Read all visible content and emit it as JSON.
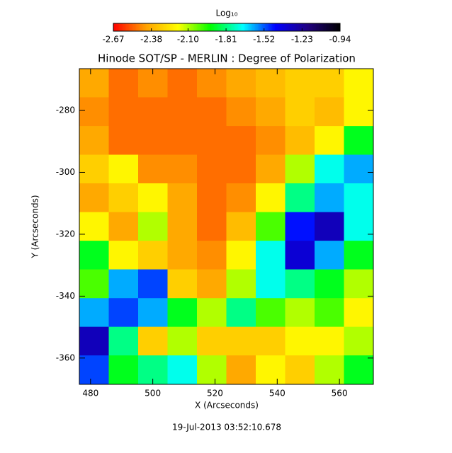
{
  "chart_data": {
    "type": "heatmap",
    "title": "Hinode SOT/SP - MERLIN : Degree of Polarization",
    "xlabel": "X (Arcseconds)",
    "ylabel": "Y (Arcseconds)",
    "footer": "19-Jul-2013 03:52:10.678",
    "colorbar_label": "Log₁₀",
    "zlim": [
      -2.67,
      -0.94
    ],
    "cticks": [
      -2.67,
      -2.38,
      {
        "value": -2.1,
        "label": "-2.10"
      },
      -1.81,
      -1.52,
      -1.23,
      -0.94
    ],
    "colormap": [
      "#ff0000",
      "#ffa000",
      "#ffff00",
      "#00ff00",
      "#00ffff",
      "#0000ff",
      "#200080",
      "#000000"
    ],
    "xlim": [
      476.4,
      570.9
    ],
    "ylim": [
      -368.5,
      -266.5
    ],
    "xticks": [
      480,
      500,
      520,
      540,
      560
    ],
    "yticks": [
      -280,
      -300,
      -320,
      -340,
      -360
    ],
    "x": [
      481.1,
      490.6,
      500.0,
      509.5,
      518.9,
      528.4,
      537.8,
      547.3,
      556.7,
      566.2
    ],
    "y": [
      -271.1,
      -280.4,
      -289.7,
      -298.9,
      -308.2,
      -317.5,
      -326.7,
      -336.0,
      -345.3,
      -354.5,
      -363.8
    ],
    "z": [
      [
        -2.4,
        -2.5,
        -2.45,
        -2.5,
        -2.45,
        -2.4,
        -2.35,
        -2.3,
        -2.3,
        -2.2
      ],
      [
        -2.45,
        -2.5,
        -2.5,
        -2.5,
        -2.5,
        -2.45,
        -2.4,
        -2.3,
        -2.35,
        -2.2
      ],
      [
        -2.4,
        -2.5,
        -2.5,
        -2.5,
        -2.5,
        -2.5,
        -2.45,
        -2.35,
        -2.2,
        -1.9
      ],
      [
        -2.3,
        -2.2,
        -2.45,
        -2.45,
        -2.5,
        -2.5,
        -2.4,
        -2.1,
        -1.7,
        -1.6
      ],
      [
        -2.4,
        -2.3,
        -2.2,
        -2.4,
        -2.5,
        -2.45,
        -2.2,
        -1.8,
        -1.6,
        -1.7
      ],
      [
        -2.2,
        -2.4,
        -2.1,
        -2.4,
        -2.5,
        -2.35,
        -2.0,
        -1.45,
        -1.3,
        -1.7
      ],
      [
        -1.9,
        -2.2,
        -2.3,
        -2.4,
        -2.45,
        -2.2,
        -1.7,
        -1.35,
        -1.6,
        -1.9
      ],
      [
        -2.0,
        -1.6,
        -1.5,
        -2.3,
        -2.4,
        -2.1,
        -1.7,
        -1.8,
        -1.9,
        -2.1
      ],
      [
        -1.6,
        -1.5,
        -1.6,
        -1.9,
        -2.1,
        -1.8,
        -2.0,
        -2.1,
        -2.0,
        -2.2
      ],
      [
        -1.3,
        -1.8,
        -2.3,
        -2.1,
        -2.3,
        -2.3,
        -2.3,
        -2.2,
        -2.2,
        -2.1
      ],
      [
        -1.5,
        -1.9,
        -1.8,
        -1.7,
        -2.1,
        -2.4,
        -2.2,
        -2.3,
        -2.1,
        -1.9
      ]
    ]
  }
}
